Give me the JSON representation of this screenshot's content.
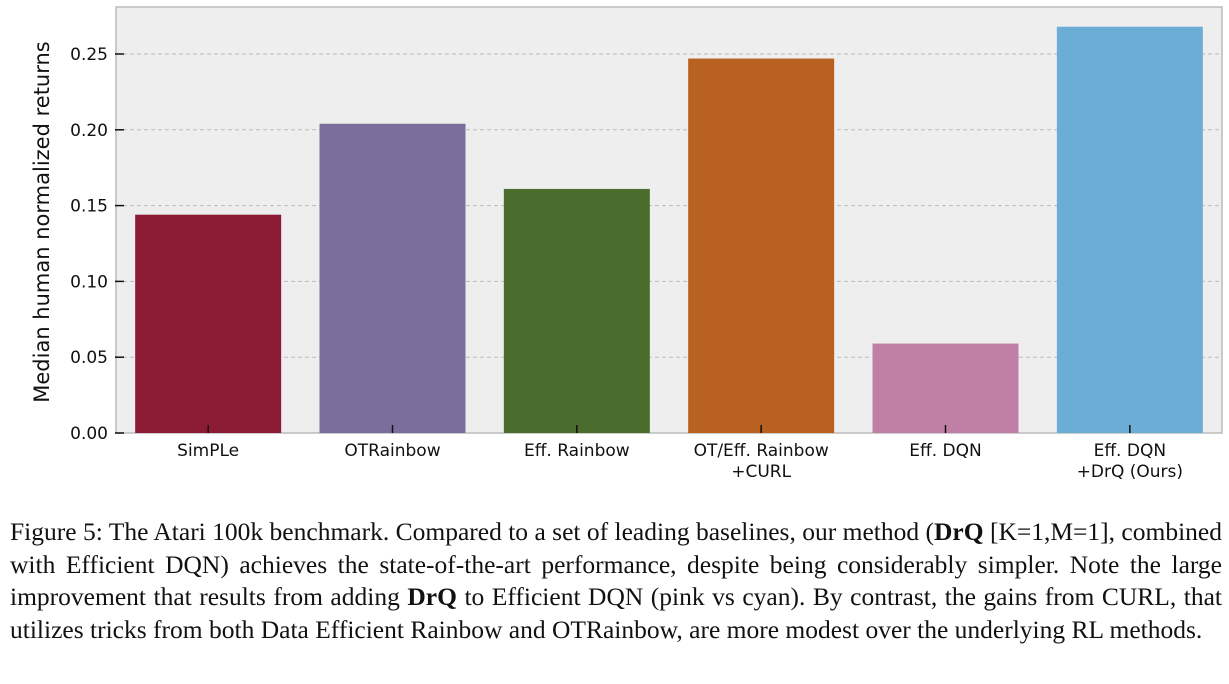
{
  "chart_data": {
    "type": "bar",
    "categories": [
      "SimPLe",
      "OTRainbow",
      "Eff. Rainbow",
      "OT/Eff. Rainbow\n+CURL",
      "Eff. DQN",
      "Eff. DQN\n+DrQ (Ours)"
    ],
    "values": [
      0.144,
      0.204,
      0.161,
      0.247,
      0.059,
      0.268
    ],
    "colors": [
      "#8b1a35",
      "#7c6e9c",
      "#4a6d2e",
      "#b86121",
      "#c080a5",
      "#6cadd6"
    ],
    "xlabel": "",
    "ylabel": "Median human normalized returns",
    "ylim": [
      0,
      0.281
    ],
    "yticks": [
      "0.00",
      "0.05",
      "0.10",
      "0.15",
      "0.20",
      "0.25"
    ],
    "grid": "horizontal dashed",
    "background": "#eeeeee"
  },
  "caption": {
    "p1": "Figure 5: The Atari 100k benchmark. Compared to a set of leading baselines, our method (",
    "b1": "DrQ",
    "p2": " [K=1,M=1], combined with Efficient DQN) achieves the state-of-the-art performance, despite being considerably simpler. Note the large improvement that results from adding ",
    "b2": "DrQ",
    "p3": " to Efficient DQN (pink vs cyan). By contrast, the gains from CURL, that utilizes tricks from both Data Efficient Rainbow and OTRainbow, are more modest over the underlying RL methods."
  }
}
